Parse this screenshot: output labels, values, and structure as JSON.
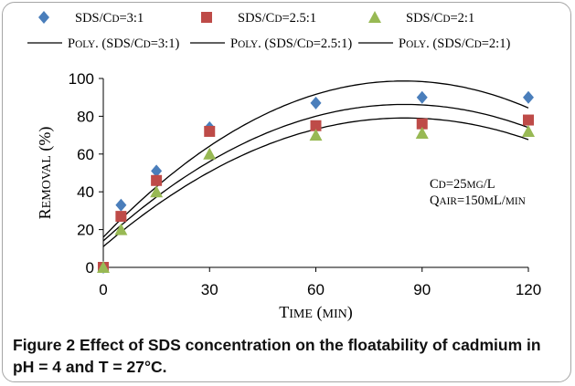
{
  "chart_data": {
    "type": "scatter",
    "xlabel": "Time (min)",
    "ylabel": "Removal (%)",
    "xlim": [
      0,
      120
    ],
    "ylim": [
      0,
      100
    ],
    "xticks": [
      0,
      30,
      60,
      90,
      120
    ],
    "yticks": [
      0,
      20,
      40,
      60,
      80,
      100
    ],
    "grid": false,
    "legend_position": "top",
    "series": [
      {
        "name": "SDS/Cd=3:1",
        "marker": "diamond",
        "color": "#4a7ebb",
        "x": [
          0,
          5,
          15,
          30,
          60,
          90,
          120
        ],
        "y": [
          0,
          33,
          51,
          74,
          87,
          90,
          90
        ]
      },
      {
        "name": "SDS/Cd=2.5:1",
        "marker": "square",
        "color": "#be4b48",
        "x": [
          0,
          5,
          15,
          30,
          60,
          90,
          120
        ],
        "y": [
          0,
          27,
          46,
          72,
          75,
          76,
          78
        ]
      },
      {
        "name": "SDS/Cd=2:1",
        "marker": "triangle",
        "color": "#98b954",
        "x": [
          0,
          5,
          15,
          30,
          60,
          90,
          120
        ],
        "y": [
          0,
          20,
          40,
          60,
          70,
          71,
          72
        ]
      }
    ],
    "trendlines": [
      {
        "name": "Poly. (SDS/Cd=3:1)",
        "color": "#000000",
        "coefficients": [
          16,
          1.95,
          -0.0115
        ]
      },
      {
        "name": "Poly. (SDS/Cd=2.5:1)",
        "color": "#000000",
        "coefficients": [
          14,
          1.7,
          -0.01
        ]
      },
      {
        "name": "Poly. (SDS/Cd=2:1)",
        "color": "#000000",
        "coefficients": [
          11,
          1.6,
          -0.0094
        ]
      }
    ],
    "annotations": [
      "Cd=25mg/L",
      "Qair=150mL/min"
    ]
  },
  "caption": {
    "label": "Figure 2",
    "text": "Effect of SDS concentration on the floatability of cadmium in pH = 4 and T = 27°C."
  }
}
